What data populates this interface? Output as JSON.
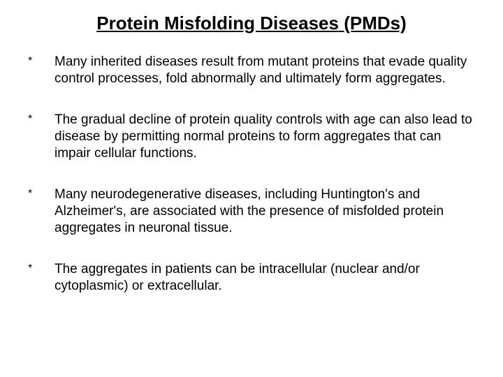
{
  "title": "Protein Misfolding Diseases (PMDs)",
  "bullets": [
    {
      "mark": "*",
      "text": "Many inherited diseases result from mutant proteins that evade quality control processes, fold abnormally and ultimately form aggregates."
    },
    {
      "mark": "*",
      "text": "The gradual decline of protein quality controls with age can also lead to disease by permitting normal proteins to form aggregates that can impair cellular functions."
    },
    {
      "mark": "*",
      "text": "Many neurodegenerative diseases, including Huntington's and Alzheimer's, are associated with the presence of misfolded protein aggregates in neuronal tissue."
    },
    {
      "mark": "*",
      "text": "The aggregates in patients can be intracellular (nuclear and/or cytoplasmic) or extracellular."
    }
  ],
  "colors": {
    "background": "#ffffff",
    "text": "#000000"
  },
  "typography": {
    "title_fontsize": 26,
    "title_weight": "bold",
    "title_decoration": "underline",
    "body_fontsize": 19,
    "font_family": "Arial"
  }
}
